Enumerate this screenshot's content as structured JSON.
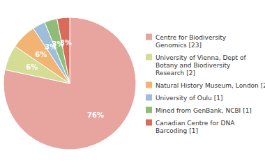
{
  "chart_data": {
    "type": "pie",
    "categories": [
      "Centre for Biodiversity\nGenomics [23]",
      "University of Vienna, Dept of\nBotany and Biodiversity\nResearch [2]",
      "Natural History Museum, London [2]",
      "University of Oulu [1]",
      "Mined from GenBank, NCBI [1]",
      "Canadian Centre for DNA\nBarcoding [1]"
    ],
    "values": [
      76,
      6,
      6,
      3,
      3,
      3
    ],
    "value_labels": [
      "76%",
      "6%",
      "6%",
      "3%",
      "3%",
      "3%"
    ],
    "colors": [
      "#e8a49e",
      "#d5dc96",
      "#f2b472",
      "#9dbddb",
      "#8fbd78",
      "#d96b5a"
    ],
    "data_labels": true,
    "legend": "right"
  }
}
